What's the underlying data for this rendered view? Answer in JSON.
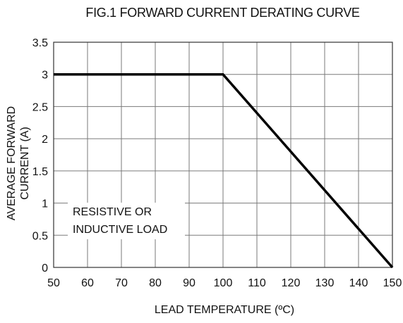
{
  "chart_data": {
    "type": "line",
    "title": "FIG.1 FORWARD CURRENT DERATING CURVE",
    "xlabel": "LEAD TEMPERATURE (ºC)",
    "ylabel_lines": [
      "AVERAGE FORWARD",
      "CURRENT (A)"
    ],
    "xlim": [
      50,
      150
    ],
    "ylim": [
      0,
      3.5
    ],
    "x_ticks": [
      "50",
      "60",
      "70",
      "80",
      "90",
      "100",
      "110",
      "120",
      "130",
      "140",
      "150"
    ],
    "y_ticks": [
      "0",
      "0.5",
      "1",
      "1.5",
      "2",
      "2.5",
      "3",
      "3.5"
    ],
    "grid": true,
    "series": [
      {
        "x": [
          50,
          100,
          150
        ],
        "y": [
          3,
          3,
          0
        ]
      }
    ],
    "annotation_lines": [
      "RESISTIVE OR",
      "INDUCTIVE LOAD"
    ],
    "line_color": "#000000",
    "grid_color": "#7a7a7a"
  }
}
